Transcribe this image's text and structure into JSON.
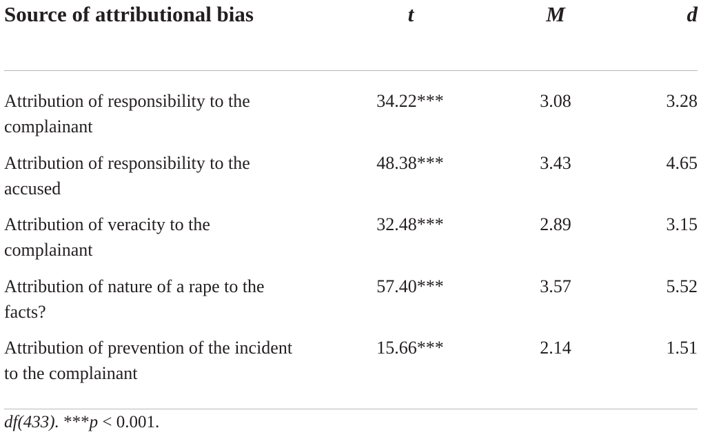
{
  "table": {
    "headers": {
      "source": "Source of attributional bias",
      "t": "t",
      "m": "M",
      "d": "d"
    },
    "rows": [
      {
        "label": "Attribution of responsibility to the complainant",
        "t": "34.22***",
        "m": "3.08",
        "d": "3.28"
      },
      {
        "label": "Attribution of responsibility to the accused",
        "t": "48.38***",
        "m": "3.43",
        "d": "4.65"
      },
      {
        "label": "Attribution of veracity to the complainant",
        "t": "32.48***",
        "m": "2.89",
        "d": "3.15"
      },
      {
        "label": "Attribution of nature of a rape to the facts?",
        "t": "57.40***",
        "m": "3.57",
        "d": "5.52"
      },
      {
        "label": "Attribution of prevention of the incident to the complainant",
        "t": "15.66***",
        "m": "2.14",
        "d": "1.51"
      }
    ]
  },
  "footnote": {
    "df": "df(433).",
    "stars": " ***",
    "p": "p",
    "rest": " < 0.001."
  }
}
